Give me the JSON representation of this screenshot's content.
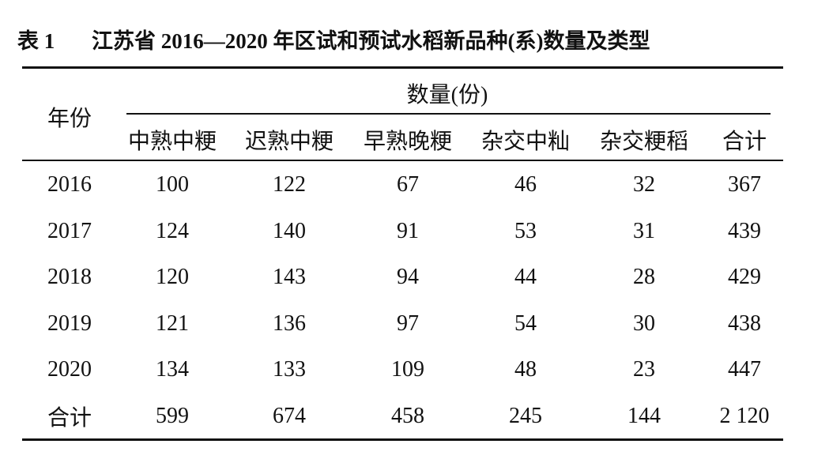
{
  "caption": {
    "label": "表 1",
    "title": "江苏省 2016—2020 年区试和预试水稻新品种(系)数量及类型"
  },
  "table": {
    "row_header": "年份",
    "group_header": "数量(份)",
    "columns": [
      "中熟中粳",
      "迟熟中粳",
      "早熟晚粳",
      "杂交中籼",
      "杂交粳稻",
      "合计"
    ],
    "rows": [
      [
        "2016",
        "100",
        "122",
        "67",
        "46",
        "32",
        "367"
      ],
      [
        "2017",
        "124",
        "140",
        "91",
        "53",
        "31",
        "439"
      ],
      [
        "2018",
        "120",
        "143",
        "94",
        "44",
        "28",
        "429"
      ],
      [
        "2019",
        "121",
        "136",
        "97",
        "54",
        "30",
        "438"
      ],
      [
        "2020",
        "134",
        "133",
        "109",
        "48",
        "23",
        "447"
      ],
      [
        "合计",
        "599",
        "674",
        "458",
        "245",
        "144",
        "2 120"
      ]
    ]
  }
}
